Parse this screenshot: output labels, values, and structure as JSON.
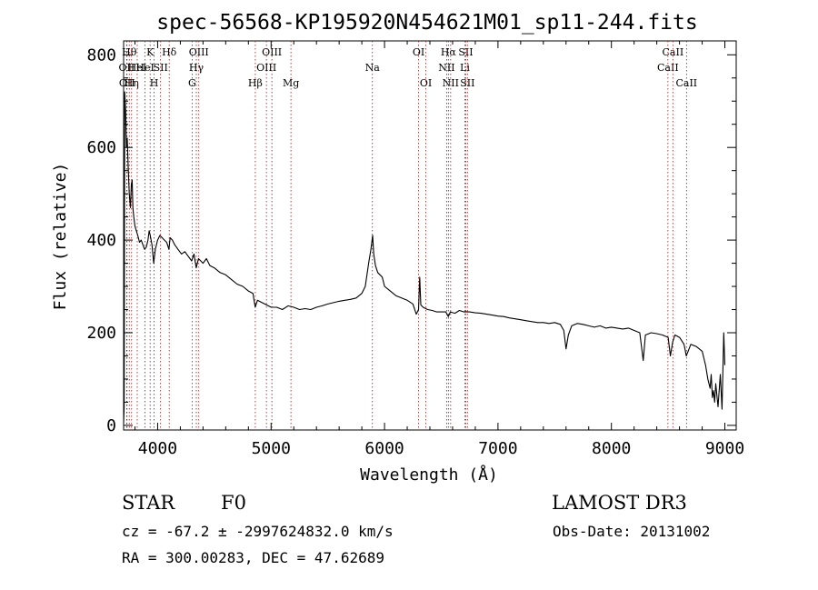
{
  "chart_data": {
    "type": "line",
    "title": "spec-56568-KP195920N454621M01_sp11-244.fits",
    "xlabel": "Wavelength (Å)",
    "ylabel": "Flux (relative)",
    "xlim": [
      3700,
      9100
    ],
    "ylim": [
      -10,
      830
    ],
    "x_ticks": [
      4000,
      5000,
      6000,
      7000,
      8000,
      9000
    ],
    "y_ticks": [
      0,
      200,
      400,
      600,
      800
    ],
    "grid": false,
    "series": [
      {
        "color": "#000000",
        "points": [
          [
            3700,
            5
          ],
          [
            3705,
            40
          ],
          [
            3710,
            720
          ],
          [
            3718,
            680
          ],
          [
            3725,
            600
          ],
          [
            3732,
            620
          ],
          [
            3740,
            560
          ],
          [
            3750,
            500
          ],
          [
            3760,
            470
          ],
          [
            3768,
            520
          ],
          [
            3775,
            530
          ],
          [
            3782,
            470
          ],
          [
            3790,
            450
          ],
          [
            3800,
            430
          ],
          [
            3812,
            420
          ],
          [
            3825,
            410
          ],
          [
            3840,
            395
          ],
          [
            3855,
            400
          ],
          [
            3870,
            390
          ],
          [
            3885,
            380
          ],
          [
            3900,
            385
          ],
          [
            3915,
            400
          ],
          [
            3925,
            420
          ],
          [
            3935,
            410
          ],
          [
            3950,
            390
          ],
          [
            3965,
            350
          ],
          [
            3980,
            380
          ],
          [
            4000,
            400
          ],
          [
            4020,
            410
          ],
          [
            4040,
            405
          ],
          [
            4060,
            400
          ],
          [
            4080,
            395
          ],
          [
            4100,
            380
          ],
          [
            4110,
            405
          ],
          [
            4130,
            400
          ],
          [
            4150,
            390
          ],
          [
            4180,
            380
          ],
          [
            4210,
            370
          ],
          [
            4240,
            375
          ],
          [
            4270,
            365
          ],
          [
            4300,
            355
          ],
          [
            4320,
            370
          ],
          [
            4340,
            340
          ],
          [
            4360,
            360
          ],
          [
            4380,
            355
          ],
          [
            4400,
            350
          ],
          [
            4430,
            360
          ],
          [
            4460,
            345
          ],
          [
            4500,
            340
          ],
          [
            4550,
            330
          ],
          [
            4600,
            325
          ],
          [
            4650,
            315
          ],
          [
            4700,
            305
          ],
          [
            4750,
            300
          ],
          [
            4800,
            290
          ],
          [
            4840,
            285
          ],
          [
            4860,
            255
          ],
          [
            4880,
            270
          ],
          [
            4920,
            265
          ],
          [
            4960,
            260
          ],
          [
            5000,
            255
          ],
          [
            5050,
            255
          ],
          [
            5100,
            250
          ],
          [
            5150,
            258
          ],
          [
            5200,
            255
          ],
          [
            5250,
            250
          ],
          [
            5300,
            252
          ],
          [
            5350,
            250
          ],
          [
            5400,
            255
          ],
          [
            5450,
            258
          ],
          [
            5500,
            262
          ],
          [
            5550,
            265
          ],
          [
            5600,
            268
          ],
          [
            5650,
            270
          ],
          [
            5700,
            272
          ],
          [
            5750,
            275
          ],
          [
            5800,
            285
          ],
          [
            5830,
            300
          ],
          [
            5860,
            350
          ],
          [
            5880,
            380
          ],
          [
            5895,
            410
          ],
          [
            5905,
            370
          ],
          [
            5920,
            345
          ],
          [
            5940,
            330
          ],
          [
            5960,
            325
          ],
          [
            5980,
            320
          ],
          [
            6000,
            300
          ],
          [
            6050,
            290
          ],
          [
            6100,
            280
          ],
          [
            6150,
            275
          ],
          [
            6200,
            270
          ],
          [
            6250,
            262
          ],
          [
            6280,
            240
          ],
          [
            6300,
            250
          ],
          [
            6310,
            320
          ],
          [
            6320,
            260
          ],
          [
            6340,
            255
          ],
          [
            6380,
            250
          ],
          [
            6420,
            248
          ],
          [
            6460,
            245
          ],
          [
            6500,
            245
          ],
          [
            6540,
            245
          ],
          [
            6563,
            235
          ],
          [
            6580,
            245
          ],
          [
            6620,
            242
          ],
          [
            6660,
            248
          ],
          [
            6700,
            245
          ],
          [
            6750,
            245
          ],
          [
            6800,
            243
          ],
          [
            6850,
            242
          ],
          [
            6900,
            240
          ],
          [
            6950,
            238
          ],
          [
            7000,
            236
          ],
          [
            7050,
            235
          ],
          [
            7100,
            232
          ],
          [
            7150,
            230
          ],
          [
            7200,
            228
          ],
          [
            7250,
            226
          ],
          [
            7300,
            224
          ],
          [
            7350,
            222
          ],
          [
            7400,
            222
          ],
          [
            7450,
            220
          ],
          [
            7500,
            222
          ],
          [
            7550,
            218
          ],
          [
            7580,
            205
          ],
          [
            7600,
            165
          ],
          [
            7620,
            195
          ],
          [
            7650,
            215
          ],
          [
            7700,
            220
          ],
          [
            7750,
            218
          ],
          [
            7800,
            215
          ],
          [
            7850,
            212
          ],
          [
            7900,
            215
          ],
          [
            7950,
            210
          ],
          [
            8000,
            212
          ],
          [
            8050,
            210
          ],
          [
            8100,
            208
          ],
          [
            8150,
            210
          ],
          [
            8200,
            205
          ],
          [
            8250,
            200
          ],
          [
            8280,
            140
          ],
          [
            8300,
            195
          ],
          [
            8350,
            200
          ],
          [
            8400,
            198
          ],
          [
            8450,
            195
          ],
          [
            8500,
            190
          ],
          [
            8520,
            150
          ],
          [
            8540,
            180
          ],
          [
            8560,
            195
          ],
          [
            8600,
            190
          ],
          [
            8640,
            175
          ],
          [
            8660,
            150
          ],
          [
            8700,
            175
          ],
          [
            8750,
            170
          ],
          [
            8800,
            160
          ],
          [
            8830,
            130
          ],
          [
            8850,
            100
          ],
          [
            8870,
            80
          ],
          [
            8880,
            110
          ],
          [
            8890,
            60
          ],
          [
            8900,
            75
          ],
          [
            8910,
            50
          ],
          [
            8920,
            90
          ],
          [
            8940,
            40
          ],
          [
            8960,
            110
          ],
          [
            8975,
            35
          ],
          [
            8990,
            200
          ],
          [
            9000,
            130
          ]
        ]
      }
    ],
    "lines": [
      {
        "w": 3727,
        "label": "OII",
        "row": 2
      },
      {
        "w": 3730,
        "label": "OII",
        "row": 3
      },
      {
        "w": 3750,
        "label": "Hθ",
        "row": 1
      },
      {
        "w": 3770,
        "label": "Hη",
        "row": 3
      },
      {
        "w": 3820,
        "label": "HeI",
        "row": 2
      },
      {
        "w": 3889,
        "label": "HeI",
        "row": 2
      },
      {
        "w": 3934,
        "label": "K",
        "row": 1
      },
      {
        "w": 3969,
        "label": "H",
        "row": 3
      },
      {
        "w": 4026,
        "label": "SII",
        "row": 2
      },
      {
        "w": 4102,
        "label": "Hδ",
        "row": 1
      },
      {
        "w": 4304,
        "label": "G",
        "row": 3
      },
      {
        "w": 4341,
        "label": "Hγ",
        "row": 2
      },
      {
        "w": 4363,
        "label": "OIII",
        "row": 1
      },
      {
        "w": 4861,
        "label": "Hβ",
        "row": 3
      },
      {
        "w": 4959,
        "label": "OIII",
        "row": 2
      },
      {
        "w": 5007,
        "label": "OIII",
        "row": 1
      },
      {
        "w": 5175,
        "label": "Mg",
        "row": 3
      },
      {
        "w": 5893,
        "label": "Na",
        "row": 2
      },
      {
        "w": 6300,
        "label": "OI",
        "row": 1
      },
      {
        "w": 6364,
        "label": "OI",
        "row": 3
      },
      {
        "w": 6548,
        "label": "NII",
        "row": 2
      },
      {
        "w": 6563,
        "label": "Hα",
        "row": 1
      },
      {
        "w": 6583,
        "label": "NII",
        "row": 3
      },
      {
        "w": 6708,
        "label": "Li",
        "row": 2
      },
      {
        "w": 6716,
        "label": "SII",
        "row": 1
      },
      {
        "w": 6731,
        "label": "SII",
        "row": 3
      },
      {
        "w": 8498,
        "label": "CaII",
        "row": 2
      },
      {
        "w": 8542,
        "label": "CaII",
        "row": 1
      },
      {
        "w": 8662,
        "label": "CaII",
        "row": 3
      }
    ]
  },
  "info": {
    "class_label": "STAR",
    "subclass": "F0",
    "survey": "LAMOST DR3",
    "cz_text": "cz = -67.2 ± -2997624832.0 km/s",
    "obs_date": "Obs-Date: 20131002",
    "radec": "RA = 300.00283, DEC =  47.62689"
  }
}
